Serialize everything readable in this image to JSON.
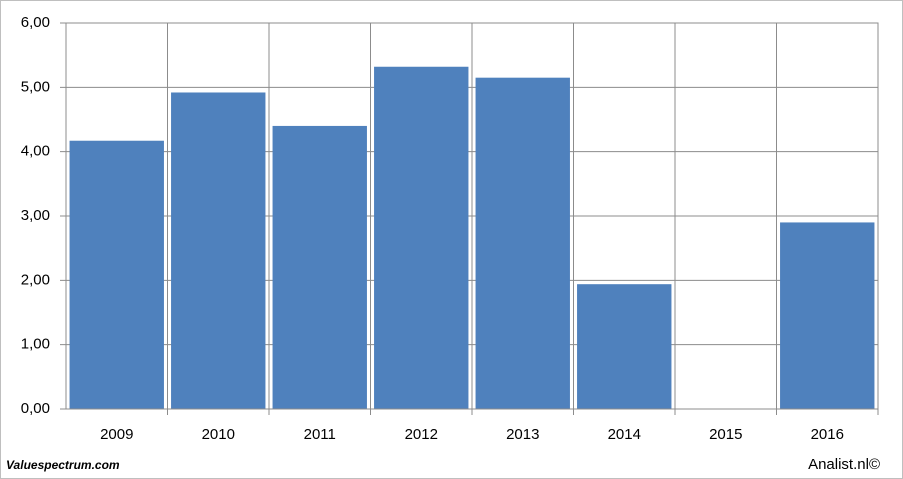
{
  "chart_data": {
    "type": "bar",
    "categories": [
      "2009",
      "2010",
      "2011",
      "2012",
      "2013",
      "2014",
      "2015",
      "2016"
    ],
    "values": [
      4.17,
      4.92,
      4.4,
      5.32,
      5.15,
      1.94,
      null,
      2.9
    ],
    "color": "#4f81bd",
    "ylim": [
      0,
      6
    ],
    "yticks": [
      {
        "value": 0,
        "label": "0,00"
      },
      {
        "value": 1,
        "label": "1,00"
      },
      {
        "value": 2,
        "label": "2,00"
      },
      {
        "value": 3,
        "label": "3,00"
      },
      {
        "value": 4,
        "label": "4,00"
      },
      {
        "value": 5,
        "label": "5,00"
      },
      {
        "value": 6,
        "label": "6,00"
      }
    ],
    "grid": true
  },
  "footer": {
    "left": "Valuespectrum.com",
    "right": "Analist.nl©"
  }
}
